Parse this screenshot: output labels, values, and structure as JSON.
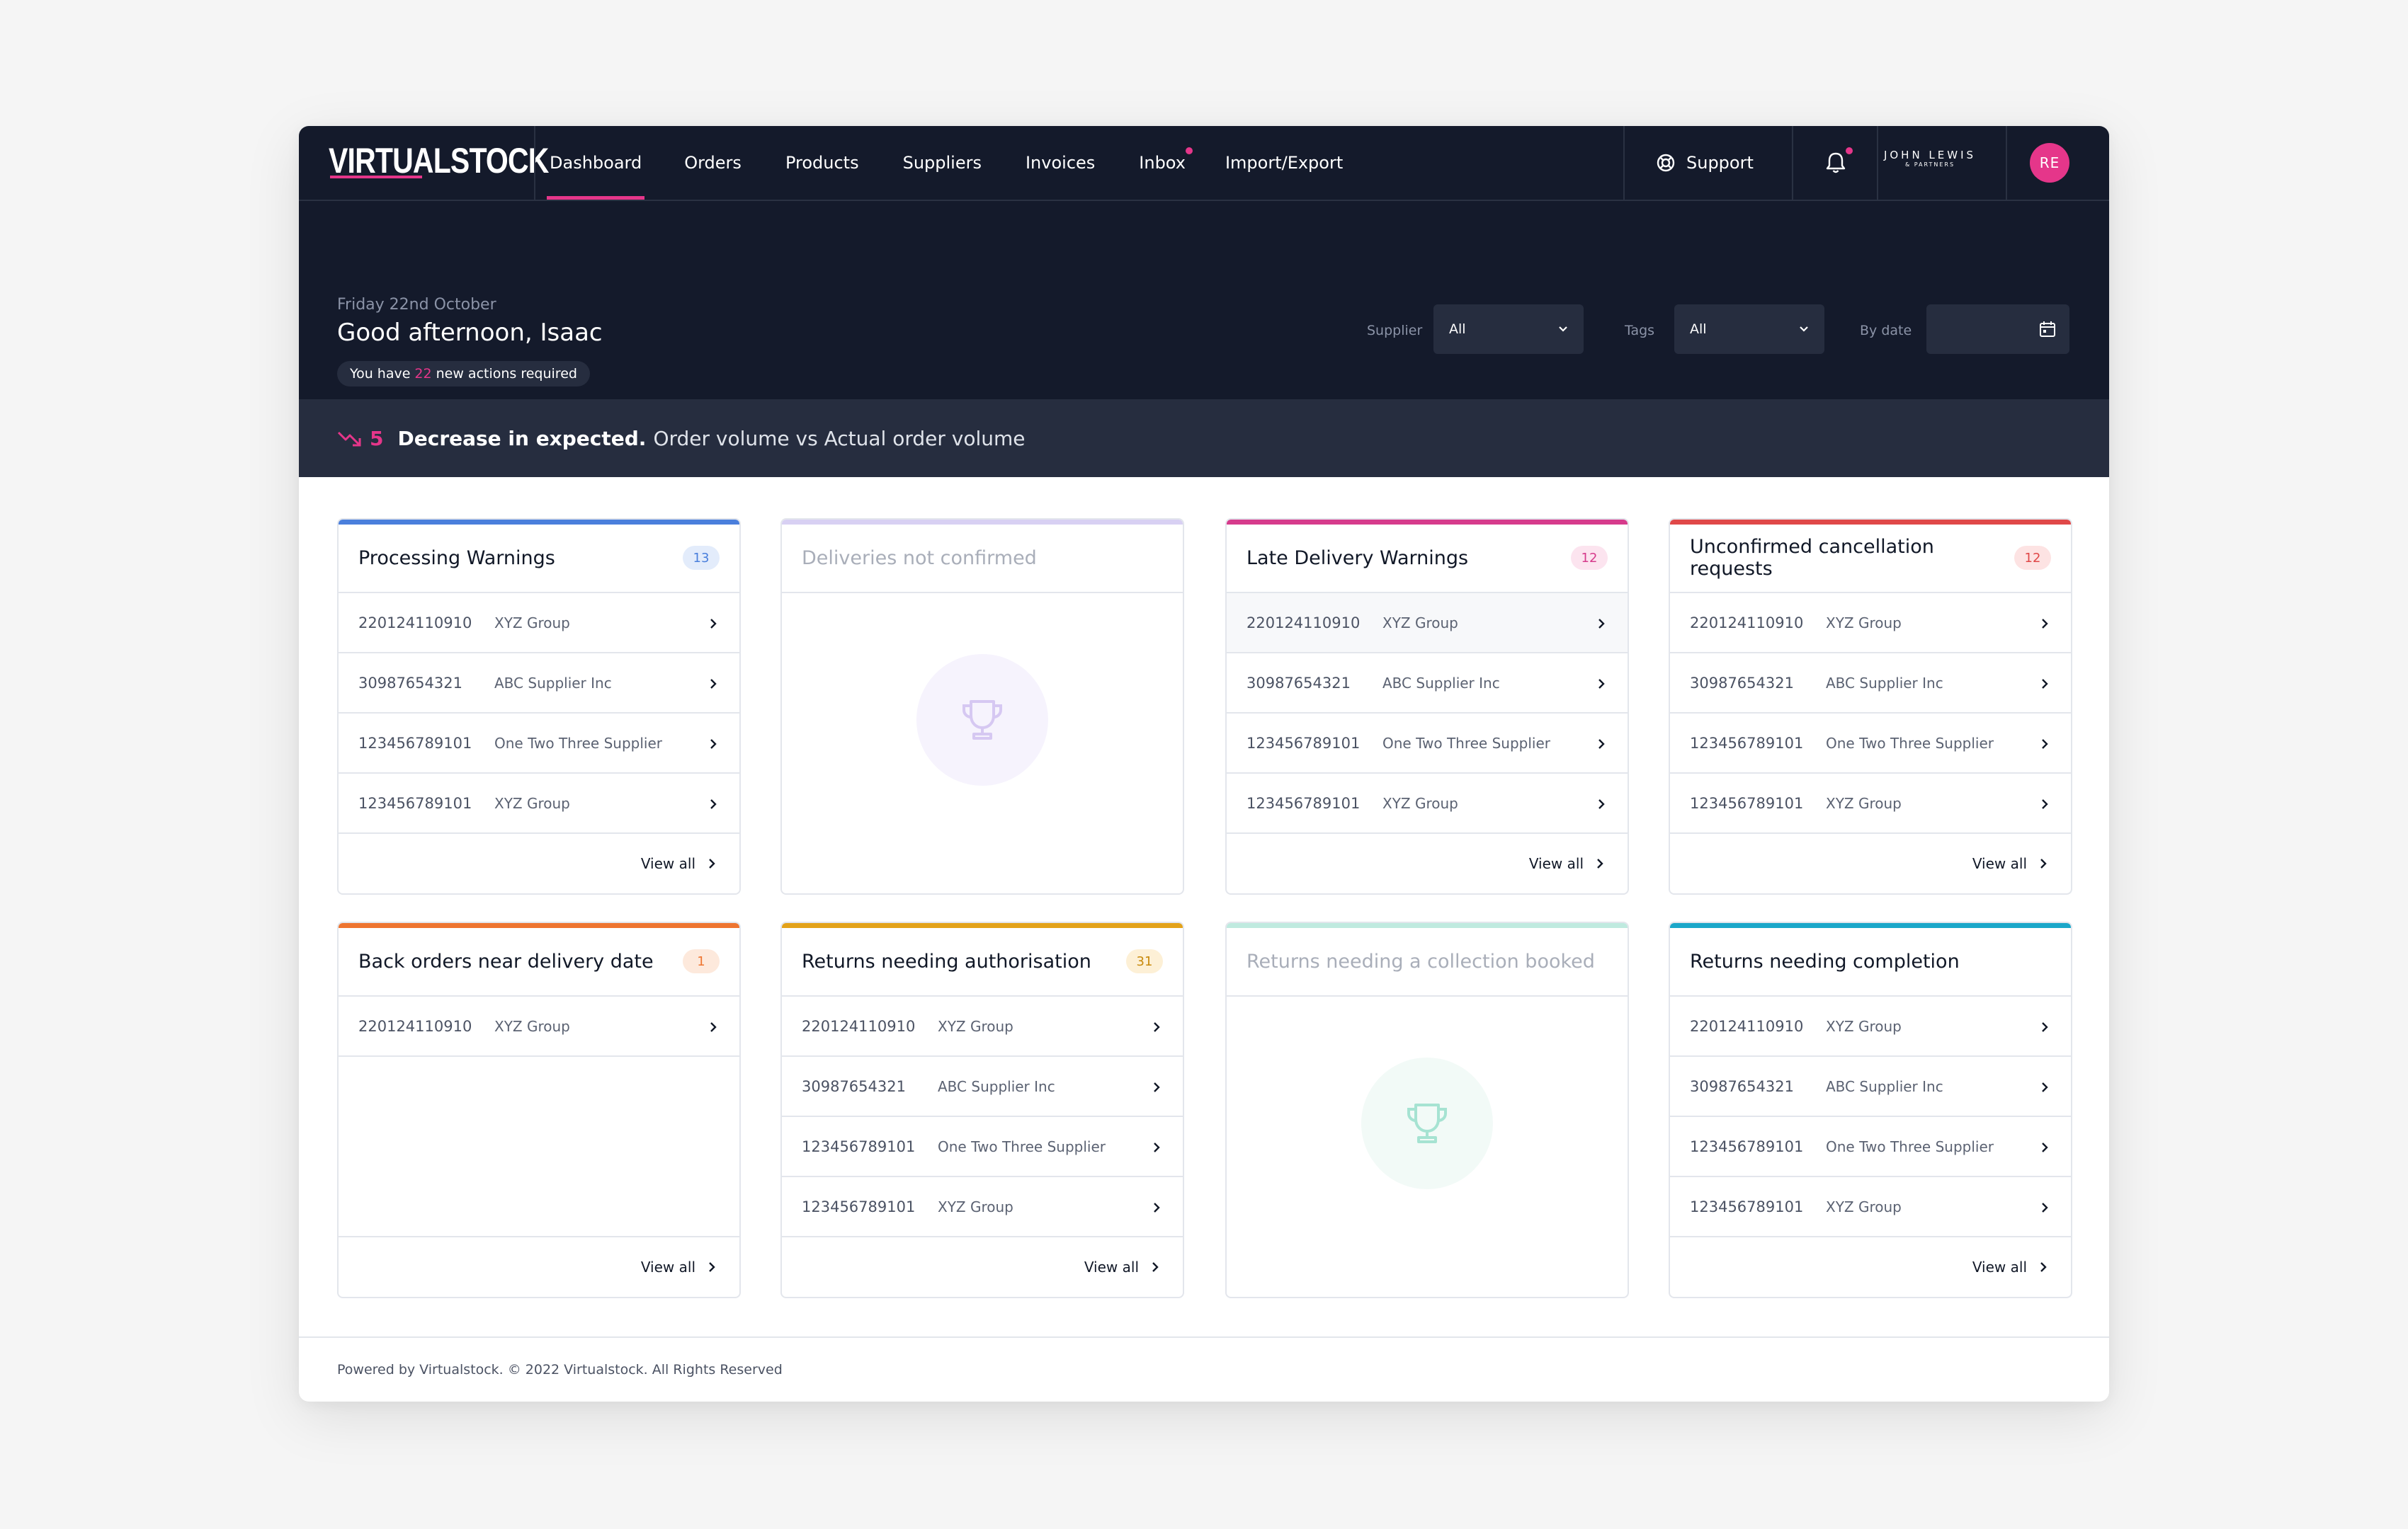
{
  "brand": {
    "logo_text": "VIRTUALSTOCK",
    "accent": "#e5368a",
    "navy": "#141a2b"
  },
  "nav": {
    "items": [
      {
        "label": "Dashboard",
        "active": true
      },
      {
        "label": "Orders"
      },
      {
        "label": "Products"
      },
      {
        "label": "Suppliers"
      },
      {
        "label": "Invoices"
      },
      {
        "label": "Inbox",
        "dot": true
      },
      {
        "label": "Import/Export"
      }
    ],
    "support_label": "Support",
    "support_icon": "lifebuoy-icon",
    "bell_icon": "bell-icon",
    "partner_line1": "JOHN LEWIS",
    "partner_line2": "& PARTNERS",
    "avatar_initials": "RE"
  },
  "hero": {
    "date": "Friday 22nd October",
    "greeting": "Good afternoon, Isaac",
    "actions_prefix": "You have",
    "actions_count": "22",
    "actions_suffix": "new actions required"
  },
  "filters": {
    "supplier_label": "Supplier",
    "supplier_value": "All",
    "tags_label": "Tags",
    "tags_value": "All",
    "date_label": "By date",
    "date_value": ""
  },
  "stat": {
    "value": "5",
    "trend_icon": "trend-down-icon",
    "strong": "Decrease in expected.",
    "rest": "Order volume vs Actual order volume"
  },
  "cards": [
    {
      "title": "Processing Warnings",
      "badge": "13",
      "color": "#4a7fdc",
      "badge_bg": "#e3ecfb",
      "badge_fg": "#4a7fdc",
      "empty": false,
      "rows": [
        {
          "id": "220124110910",
          "supplier": "XYZ Group"
        },
        {
          "id": "30987654321",
          "supplier": "ABC Supplier Inc"
        },
        {
          "id": "123456789101",
          "supplier": "One Two Three Supplier"
        },
        {
          "id": "123456789101",
          "supplier": "XYZ Group"
        }
      ],
      "view_all": "View all"
    },
    {
      "title": "Deliveries not confirmed",
      "badge": "",
      "color": "#d8d0f3",
      "icon_bg": "#f6f3fd",
      "icon_color": "#d6c8f2",
      "empty": true,
      "rows": []
    },
    {
      "title": "Late Delivery Warnings",
      "badge": "12",
      "color": "#d63b8c",
      "badge_bg": "#fce4ef",
      "badge_fg": "#d63b8c",
      "empty": false,
      "rows": [
        {
          "id": "220124110910",
          "supplier": "XYZ Group"
        },
        {
          "id": "30987654321",
          "supplier": "ABC Supplier Inc"
        },
        {
          "id": "123456789101",
          "supplier": "One Two Three Supplier"
        },
        {
          "id": "123456789101",
          "supplier": "XYZ Group"
        }
      ],
      "view_all": "View all"
    },
    {
      "title": "Unconfirmed cancellation requests",
      "badge": "12",
      "color": "#e04848",
      "badge_bg": "#fde3e3",
      "badge_fg": "#e04848",
      "empty": false,
      "rows": [
        {
          "id": "220124110910",
          "supplier": "XYZ Group"
        },
        {
          "id": "30987654321",
          "supplier": "ABC Supplier Inc"
        },
        {
          "id": "123456789101",
          "supplier": "One Two Three Supplier"
        },
        {
          "id": "123456789101",
          "supplier": "XYZ Group"
        }
      ],
      "view_all": "View all"
    },
    {
      "title": "Back orders near delivery date",
      "badge": "1",
      "color": "#ee7530",
      "badge_bg": "#fde9dc",
      "badge_fg": "#ee7530",
      "empty": false,
      "rows": [
        {
          "id": "220124110910",
          "supplier": "XYZ Group"
        }
      ],
      "view_all": "View all"
    },
    {
      "title": "Returns needing authorisation",
      "badge": "31",
      "color": "#e3a21a",
      "badge_bg": "#fdf0d6",
      "badge_fg": "#c88a0c",
      "empty": false,
      "rows": [
        {
          "id": "220124110910",
          "supplier": "XYZ Group"
        },
        {
          "id": "30987654321",
          "supplier": "ABC Supplier Inc"
        },
        {
          "id": "123456789101",
          "supplier": "One Two Three Supplier"
        },
        {
          "id": "123456789101",
          "supplier": "XYZ Group"
        }
      ],
      "view_all": "View all"
    },
    {
      "title": "Returns needing a collection booked",
      "badge": "",
      "color": "#bfeadf",
      "icon_bg": "#f2faf7",
      "icon_color": "#a6e3d2",
      "empty": true,
      "rows": []
    },
    {
      "title": "Returns needing completion",
      "badge": "",
      "color": "#1ba7c9",
      "empty": false,
      "rows": [
        {
          "id": "220124110910",
          "supplier": "XYZ Group"
        },
        {
          "id": "30987654321",
          "supplier": "ABC Supplier Inc"
        },
        {
          "id": "123456789101",
          "supplier": "One Two Three Supplier"
        },
        {
          "id": "123456789101",
          "supplier": "XYZ Group"
        }
      ],
      "view_all": "View all"
    }
  ],
  "footer": {
    "text": "Powered by Virtualstock. © 2022 Virtualstock. All Rights Reserved"
  }
}
